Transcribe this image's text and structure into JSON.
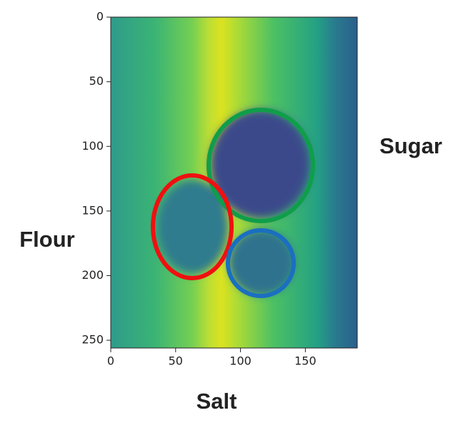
{
  "chart_data": {
    "type": "image",
    "xlim": [
      0,
      190
    ],
    "ylim": [
      256,
      0
    ],
    "xticks": [
      0,
      50,
      100,
      150
    ],
    "yticks": [
      0,
      50,
      100,
      150,
      200,
      250
    ],
    "annotations": [
      {
        "text": "Sugar",
        "color": "#0f9e4a"
      },
      {
        "text": "Flour",
        "color": "#f01010"
      },
      {
        "text": "Salt",
        "color": "#1a6fc0"
      }
    ]
  }
}
